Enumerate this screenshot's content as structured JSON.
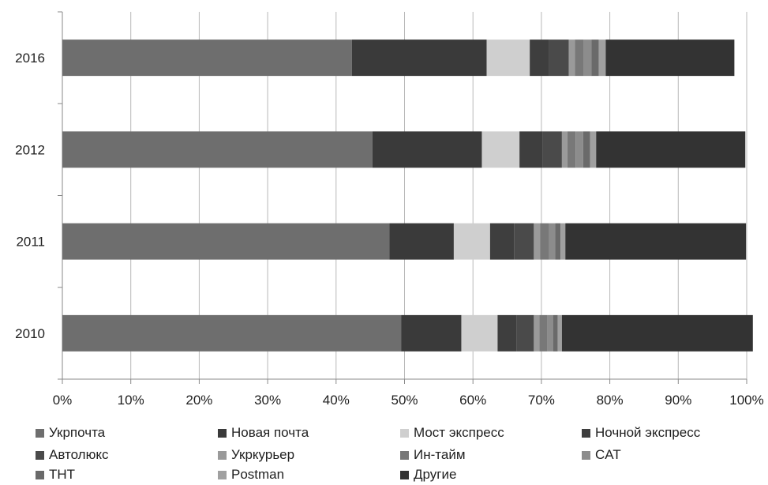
{
  "chart_data": {
    "type": "bar",
    "orientation": "horizontal",
    "stacked": "percent",
    "categories": [
      "2016",
      "2012",
      "2011",
      "2010"
    ],
    "xlim": [
      0,
      100
    ],
    "x_ticks": [
      "0%",
      "10%",
      "20%",
      "30%",
      "40%",
      "50%",
      "60%",
      "70%",
      "80%",
      "90%",
      "100%"
    ],
    "grid": true,
    "legend_position": "bottom",
    "series": [
      {
        "name": "Укрпочта",
        "color": "#6e6e6e",
        "values": [
          42.3,
          45.3,
          47.8,
          49.5
        ]
      },
      {
        "name": "Новая почта",
        "color": "#3a3a3a",
        "values": [
          19.7,
          16.0,
          9.4,
          8.8
        ]
      },
      {
        "name": "Мост экспресс",
        "color": "#cfcfcf",
        "values": [
          6.3,
          5.5,
          5.3,
          5.3
        ]
      },
      {
        "name": "Ночной экспресс",
        "color": "#3e3e3e",
        "values": [
          2.8,
          3.4,
          3.5,
          2.8
        ]
      },
      {
        "name": "Автолюкс",
        "color": "#4a4a4a",
        "values": [
          2.9,
          2.8,
          2.9,
          2.5
        ]
      },
      {
        "name": "Укркурьер",
        "color": "#9a9a9a",
        "values": [
          0.9,
          0.8,
          0.9,
          0.8
        ]
      },
      {
        "name": "Ин-тайм",
        "color": "#787878",
        "values": [
          1.3,
          1.2,
          1.3,
          1.2
        ]
      },
      {
        "name": "CAT",
        "color": "#8c8c8c",
        "values": [
          1.1,
          1.1,
          0.9,
          0.8
        ]
      },
      {
        "name": "THT",
        "color": "#6a6a6a",
        "values": [
          1.1,
          1.0,
          0.8,
          0.7
        ]
      },
      {
        "name": "Postman",
        "color": "#a0a0a0",
        "values": [
          1.0,
          0.9,
          0.7,
          0.6
        ]
      },
      {
        "name": "Другие",
        "color": "#333333",
        "values": [
          18.8,
          21.8,
          26.4,
          27.9
        ]
      }
    ]
  }
}
